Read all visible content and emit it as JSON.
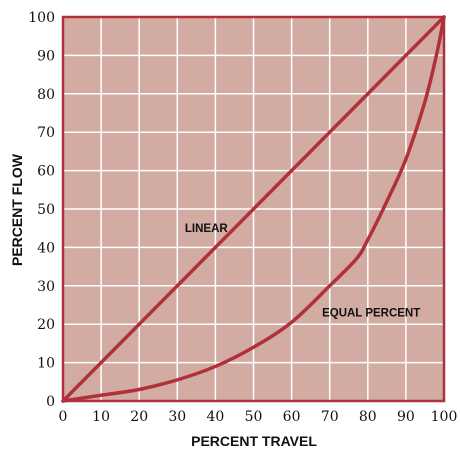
{
  "chart_data": {
    "type": "line",
    "xlabel": "PERCENT TRAVEL",
    "ylabel": "PERCENT FLOW",
    "xlim": [
      0,
      100
    ],
    "ylim": [
      0,
      100
    ],
    "xticks": [
      "0",
      "10",
      "20",
      "30",
      "40",
      "50",
      "60",
      "70",
      "80",
      "90",
      "100"
    ],
    "yticks": [
      "0",
      "10",
      "20",
      "30",
      "40",
      "50",
      "60",
      "70",
      "80",
      "90",
      "100"
    ],
    "grid": true,
    "colors": {
      "plot_background": "#d2aca3",
      "grid": "#ffffff",
      "series": "#b0313a",
      "frame": "#b0313a"
    },
    "series": [
      {
        "label": "LINEAR",
        "label_at": [
          32,
          44
        ],
        "x": [
          0,
          100
        ],
        "y": [
          0,
          100
        ]
      },
      {
        "label": "EQUAL PERCENT",
        "label_at": [
          68,
          22
        ],
        "x": [
          0,
          10,
          20,
          30,
          40,
          50,
          60,
          70,
          77,
          80,
          85,
          90,
          95,
          98,
          100
        ],
        "y": [
          0,
          1.5,
          3,
          5.5,
          9,
          14,
          20.5,
          30,
          37,
          42,
          52,
          63,
          78,
          90,
          100
        ]
      }
    ]
  }
}
